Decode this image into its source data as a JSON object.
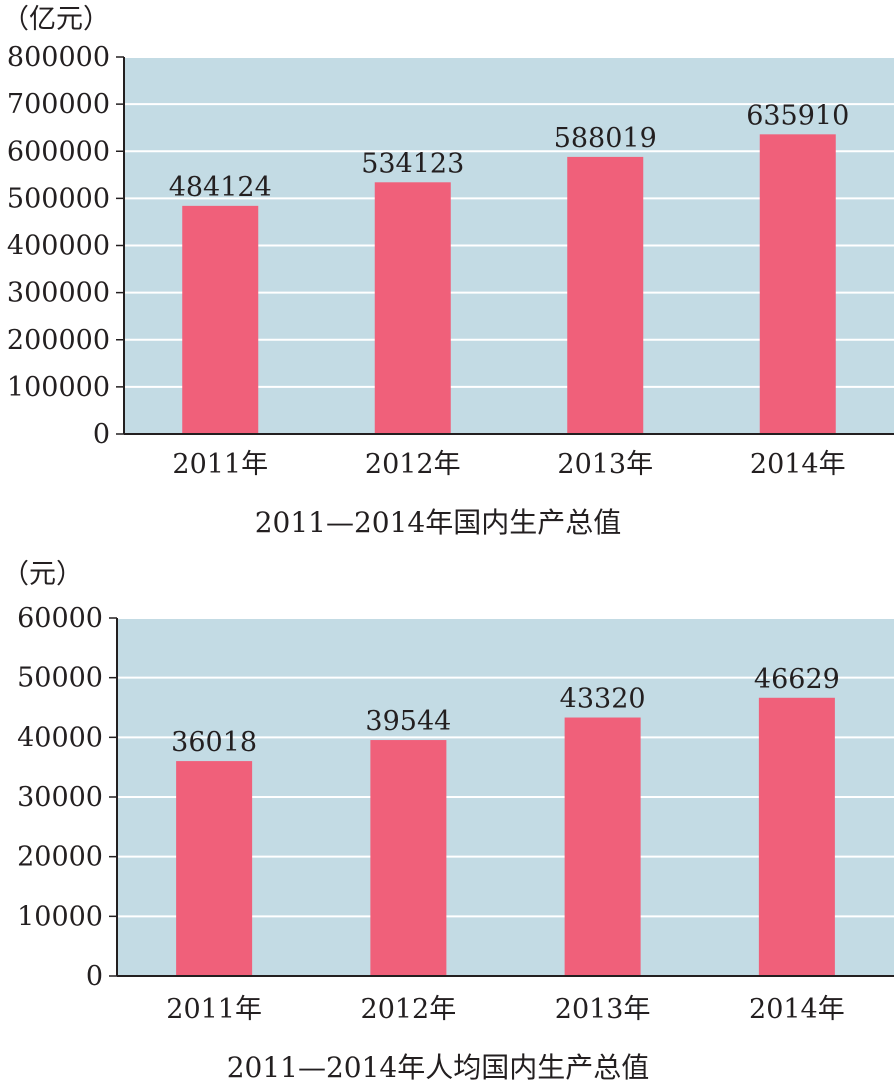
{
  "chart_data": [
    {
      "type": "bar",
      "title": "2011—2014年国内生产总值",
      "unit": "（亿元）",
      "categories": [
        "2011年",
        "2012年",
        "2013年",
        "2014年"
      ],
      "values": [
        484124,
        534123,
        588019,
        635910
      ],
      "ylim": [
        0,
        800000
      ],
      "yticks": [
        0,
        100000,
        200000,
        300000,
        400000,
        500000,
        600000,
        700000,
        800000
      ],
      "grid": true,
      "colors": {
        "bar": "#f0607a",
        "plot_bg": "#c3dbe4",
        "grid": "#ffffff"
      }
    },
    {
      "type": "bar",
      "title": "2011—2014年人均国内生产总值",
      "unit": "（元）",
      "categories": [
        "2011年",
        "2012年",
        "2013年",
        "2014年"
      ],
      "values": [
        36018,
        39544,
        43320,
        46629
      ],
      "ylim": [
        0,
        60000
      ],
      "yticks": [
        0,
        10000,
        20000,
        30000,
        40000,
        50000,
        60000
      ],
      "grid": true,
      "colors": {
        "bar": "#f0607a",
        "plot_bg": "#c3dbe4",
        "grid": "#ffffff"
      }
    }
  ]
}
